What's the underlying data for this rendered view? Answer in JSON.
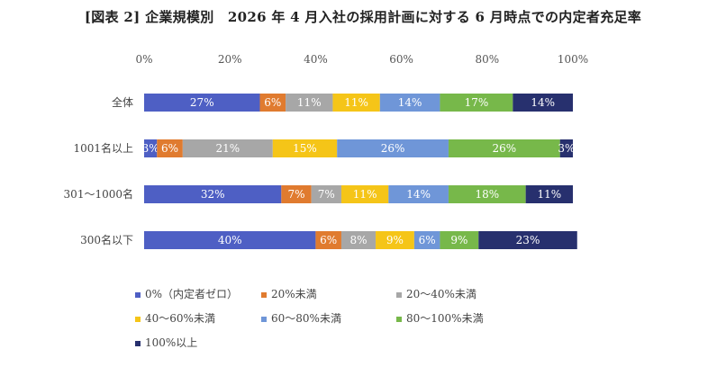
{
  "chart_data": {
    "type": "bar",
    "orientation": "horizontal",
    "stacked": true,
    "title": "[図表 2] 企業規模別　2026 年 4 月入社の採用計画に対する 6 月時点での内定者充足率",
    "categories": [
      "全体",
      "1001名以上",
      "301～1000名",
      "300名以下"
    ],
    "xticks": [
      "0%",
      "20%",
      "40%",
      "60%",
      "80%",
      "100%"
    ],
    "xlim": [
      0,
      100
    ],
    "legend_position": "bottom",
    "series": [
      {
        "name": "0%（内定者ゼロ）",
        "color": "#4e5fc4",
        "values": [
          27,
          3,
          32,
          40
        ],
        "labels": [
          "27%",
          "3%",
          "32%",
          "40%"
        ]
      },
      {
        "name": "20%未満",
        "color": "#e07b2f",
        "values": [
          6,
          6,
          7,
          6
        ],
        "labels": [
          "6%",
          "6%",
          "7%",
          "6%"
        ]
      },
      {
        "name": "20～40%未満",
        "color": "#a7a7a7",
        "values": [
          11,
          21,
          7,
          8
        ],
        "labels": [
          "11%",
          "21%",
          "7%",
          "8%"
        ]
      },
      {
        "name": "40～60%未満",
        "color": "#f5c518",
        "values": [
          11,
          15,
          11,
          9
        ],
        "labels": [
          "11%",
          "15%",
          "11%",
          "9%"
        ]
      },
      {
        "name": "60～80%未満",
        "color": "#6f96d8",
        "values": [
          14,
          26,
          14,
          6
        ],
        "labels": [
          "14%",
          "26%",
          "14%",
          "6%"
        ]
      },
      {
        "name": "80～100%未満",
        "color": "#77b84a",
        "values": [
          17,
          26,
          18,
          9
        ],
        "labels": [
          "17%",
          "26%",
          "18%",
          "9%"
        ]
      },
      {
        "name": "100%以上",
        "color": "#27306e",
        "values": [
          14,
          3,
          11,
          23
        ],
        "labels": [
          "14%",
          "3%",
          "11%",
          "23%"
        ]
      }
    ]
  }
}
